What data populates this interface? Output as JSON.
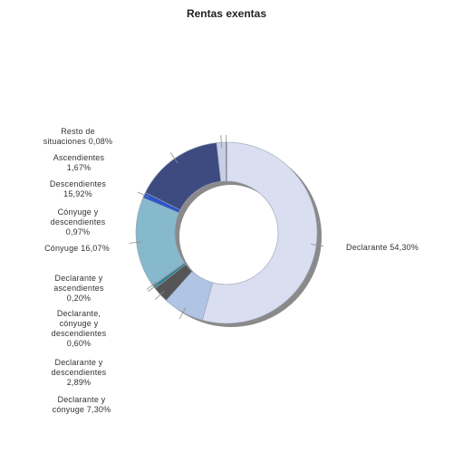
{
  "chart_data": {
    "type": "pie",
    "variant": "donut",
    "title": "Rentas exentas",
    "slices": [
      {
        "id": "declarante",
        "label_lines": [
          "Declarante 54,30%"
        ],
        "value": 54.3,
        "color": "#d9def0"
      },
      {
        "id": "declarante-conyuge",
        "label_lines": [
          "Declarante y",
          "cónyuge 7,30%"
        ],
        "value": 7.3,
        "color": "#b0c4e3"
      },
      {
        "id": "declarante-descendientes",
        "label_lines": [
          "Declarante y",
          "descendientes",
          "2,89%"
        ],
        "value": 2.89,
        "color": "#555555"
      },
      {
        "id": "declarante-conyuge-descendientes",
        "label_lines": [
          "Declarante,",
          "cónyuge y",
          "descendientes",
          "0,60%"
        ],
        "value": 0.6,
        "color": "#2d7f8f"
      },
      {
        "id": "declarante-ascendientes",
        "label_lines": [
          "Declarante y",
          "ascendientes",
          "0,20%"
        ],
        "value": 0.2,
        "color": "#7ab8c8"
      },
      {
        "id": "conyuge",
        "label_lines": [
          "Cónyuge 16,07%"
        ],
        "value": 16.07,
        "color": "#86b9cc"
      },
      {
        "id": "conyuge-descendientes",
        "label_lines": [
          "Cónyuge y",
          "descendientes",
          "0,97%"
        ],
        "value": 0.97,
        "color": "#2b56c6"
      },
      {
        "id": "descendientes",
        "label_lines": [
          "Descendientes",
          "15,92%"
        ],
        "value": 15.92,
        "color": "#3d4b80"
      },
      {
        "id": "ascendientes",
        "label_lines": [
          "Ascendientes",
          "1,67%"
        ],
        "value": 1.67,
        "color": "#c7cee6"
      },
      {
        "id": "resto",
        "label_lines": [
          "Resto de",
          "situaciones 0,08%"
        ],
        "value": 0.08,
        "color": "#e6e9f3"
      }
    ]
  }
}
